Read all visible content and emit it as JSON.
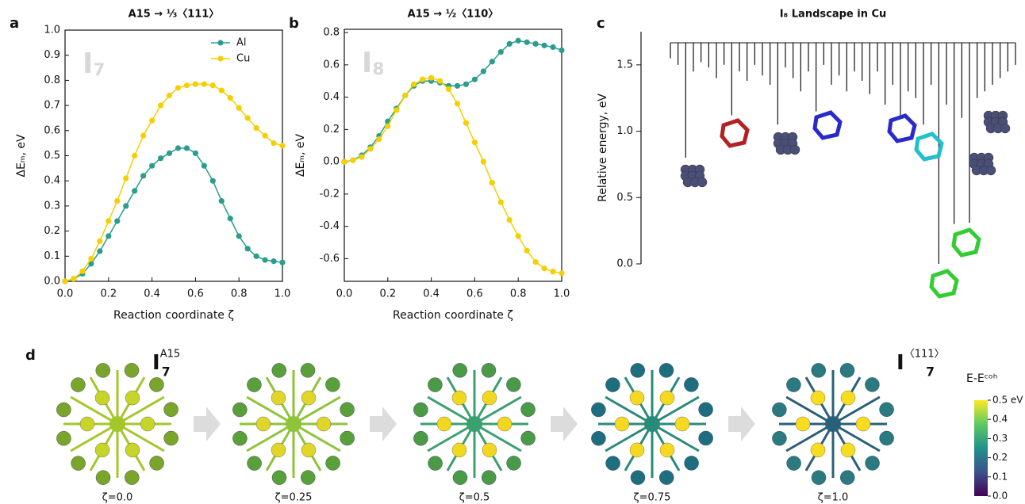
{
  "chart_data": [
    {
      "type": "line",
      "panel": "a",
      "title": "A15 → ⅓〈111〉",
      "xlabel": "Reaction coordinate ζ",
      "ylabel": "ΔEₘ, eV",
      "annotation": {
        "base": "I",
        "sub": "7"
      },
      "legend": "upper right",
      "x": [
        0,
        0.04,
        0.08,
        0.12,
        0.16,
        0.2,
        0.24,
        0.28,
        0.32,
        0.36,
        0.4,
        0.44,
        0.48,
        0.52,
        0.56,
        0.6,
        0.64,
        0.68,
        0.72,
        0.76,
        0.8,
        0.84,
        0.88,
        0.92,
        0.96,
        1.0
      ],
      "series": [
        {
          "name": "Al",
          "color": "#2a9d8f",
          "values": [
            0,
            0.01,
            0.03,
            0.07,
            0.12,
            0.18,
            0.24,
            0.3,
            0.36,
            0.42,
            0.46,
            0.49,
            0.51,
            0.53,
            0.53,
            0.51,
            0.46,
            0.4,
            0.32,
            0.25,
            0.18,
            0.13,
            0.1,
            0.085,
            0.08,
            0.075
          ]
        },
        {
          "name": "Cu",
          "color": "#f5cf00",
          "values": [
            0,
            0.01,
            0.04,
            0.09,
            0.16,
            0.24,
            0.32,
            0.41,
            0.5,
            0.58,
            0.64,
            0.7,
            0.74,
            0.77,
            0.78,
            0.785,
            0.785,
            0.78,
            0.76,
            0.73,
            0.69,
            0.65,
            0.61,
            0.58,
            0.55,
            0.54
          ]
        }
      ],
      "xlim": [
        0,
        1
      ],
      "xticks": [
        {
          "value": 0,
          "label": "0.0"
        },
        0.2,
        0.4,
        0.6,
        0.8,
        {
          "value": 1,
          "label": "1.0"
        }
      ],
      "ylim": [
        0,
        1
      ],
      "yticks": [
        {
          "value": 0,
          "label": "0.0"
        },
        0.1,
        0.2,
        0.3,
        0.4,
        0.5,
        0.6,
        0.7,
        0.8,
        0.9,
        {
          "value": 1,
          "label": "1.0"
        }
      ]
    },
    {
      "type": "line",
      "panel": "b",
      "title": "A15 → ½〈110〉",
      "xlabel": "Reaction coordinate ζ",
      "ylabel": "ΔEₘ, eV",
      "annotation": {
        "base": "I",
        "sub": "8"
      },
      "x": [
        0,
        0.04,
        0.08,
        0.12,
        0.16,
        0.2,
        0.24,
        0.28,
        0.32,
        0.36,
        0.4,
        0.44,
        0.48,
        0.52,
        0.56,
        0.6,
        0.64,
        0.68,
        0.72,
        0.76,
        0.8,
        0.84,
        0.88,
        0.92,
        0.96,
        1.0
      ],
      "series": [
        {
          "name": "Al",
          "color": "#2a9d8f",
          "values": [
            0,
            0.01,
            0.04,
            0.09,
            0.16,
            0.25,
            0.33,
            0.41,
            0.47,
            0.5,
            0.5,
            0.49,
            0.47,
            0.47,
            0.48,
            0.51,
            0.56,
            0.62,
            0.68,
            0.73,
            0.75,
            0.74,
            0.73,
            0.72,
            0.71,
            0.69
          ]
        },
        {
          "name": "Cu",
          "color": "#f5cf00",
          "values": [
            0,
            0.01,
            0.03,
            0.08,
            0.14,
            0.22,
            0.32,
            0.41,
            0.48,
            0.51,
            0.52,
            0.5,
            0.45,
            0.36,
            0.24,
            0.12,
            0,
            -0.13,
            -0.25,
            -0.36,
            -0.46,
            -0.55,
            -0.62,
            -0.66,
            -0.68,
            -0.69
          ]
        }
      ],
      "xlim": [
        0,
        1
      ],
      "xticks": [
        {
          "value": 0,
          "label": "0.0"
        },
        0.2,
        0.4,
        0.6,
        0.8,
        {
          "value": 1,
          "label": "1.0"
        }
      ],
      "ylim": [
        -0.74,
        0.82
      ],
      "yticks": [
        -0.6,
        -0.4,
        -0.2,
        {
          "value": 0,
          "label": "0.0"
        },
        0.2,
        0.4,
        0.6,
        0.8
      ]
    },
    {
      "type": "disconnectivity",
      "panel": "c",
      "title": "I₈ Landscape in Cu",
      "ylabel": "Relative energy, eV",
      "color": "#111111",
      "values": [
        1.55,
        1.5,
        0.8,
        1.45,
        1.52,
        1.48,
        1.4,
        1.5,
        1.12,
        1.45,
        1.38,
        1.5,
        1.42,
        1.35,
        1.05,
        1.48,
        1.4,
        1.3,
        1.45,
        1.15,
        1.5,
        1.35,
        1.42,
        1.3,
        1.45,
        1.38,
        1.28,
        1.45,
        1.2,
        1.35,
        1.1,
        1.3,
        1.25,
        1.05,
        1.35,
        0.0,
        1.2,
        0.3,
        1.1,
        0.31,
        1.25,
        1.3,
        1.35,
        1.4,
        1.45,
        1.5
      ],
      "ylim": [
        0,
        1.75
      ],
      "yticks": [
        {
          "value": 0,
          "label": "0.0"
        },
        0.5,
        {
          "value": 1,
          "label": "1.0"
        },
        1.5
      ]
    },
    {
      "type": "colorbar",
      "panel": "d",
      "start_label": {
        "base": "I",
        "sub": "7",
        "sup": "A15"
      },
      "end_label": {
        "base": "I",
        "sub": "7",
        "sup": "〈111〉"
      },
      "frames": [
        "ζ=0.0",
        "ζ=0.25",
        "ζ=0.5",
        "ζ=0.75",
        "ζ=1.0"
      ],
      "colorbar_title": "E-Eᶜᵒʰ",
      "clim": [
        0,
        0.5
      ],
      "cticks": [
        {
          "value": 0,
          "label": "0.0"
        },
        0.1,
        0.2,
        0.3,
        0.4,
        {
          "value": 0.5,
          "label": "0.5 eV"
        }
      ]
    }
  ]
}
